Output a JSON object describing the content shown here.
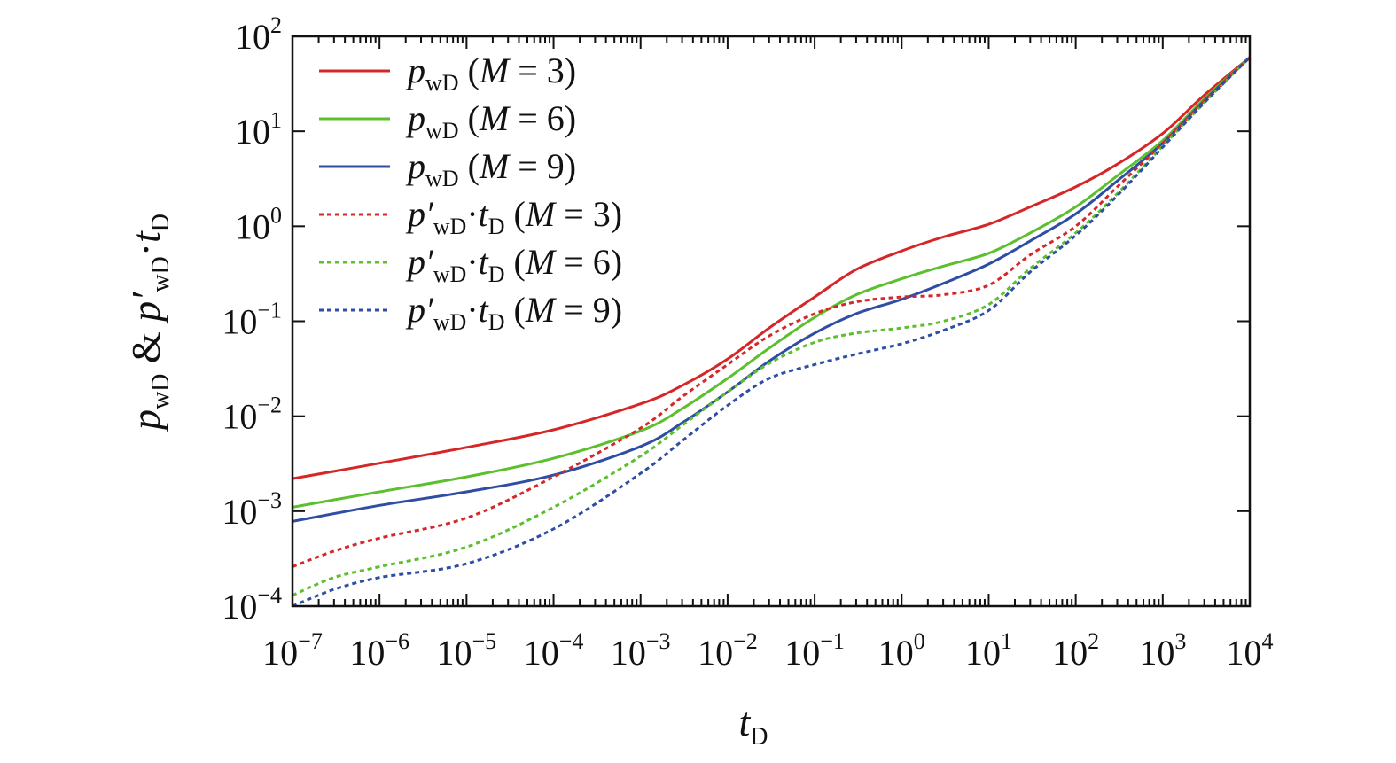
{
  "chart_data": {
    "type": "line",
    "xscale": "log",
    "yscale": "log",
    "xlim": [
      1e-07,
      10000.0
    ],
    "ylim": [
      0.0001,
      100.0
    ],
    "grid": false,
    "legend_position": "top-left",
    "xlabel": {
      "main": "t",
      "sub": "D"
    },
    "ylabel": {
      "p1": "p",
      "sub1": "wD",
      "amp": " & ",
      "p2": "p′",
      "sub2": "wD",
      "dot": "·",
      "t": "t",
      "sub3": "D"
    },
    "x_ticks": [
      {
        "base": "10",
        "exp": "−7",
        "value": 1e-07
      },
      {
        "base": "10",
        "exp": "−6",
        "value": 1e-06
      },
      {
        "base": "10",
        "exp": "−5",
        "value": 1e-05
      },
      {
        "base": "10",
        "exp": "−4",
        "value": 0.0001
      },
      {
        "base": "10",
        "exp": "−3",
        "value": 0.001
      },
      {
        "base": "10",
        "exp": "−2",
        "value": 0.01
      },
      {
        "base": "10",
        "exp": "−1",
        "value": 0.1
      },
      {
        "base": "10",
        "exp": "0",
        "value": 1
      },
      {
        "base": "10",
        "exp": "1",
        "value": 10
      },
      {
        "base": "10",
        "exp": "2",
        "value": 100
      },
      {
        "base": "10",
        "exp": "3",
        "value": 1000
      },
      {
        "base": "10",
        "exp": "4",
        "value": 10000
      }
    ],
    "y_ticks": [
      {
        "base": "10",
        "exp": "−4",
        "value": 0.0001
      },
      {
        "base": "10",
        "exp": "−3",
        "value": 0.001
      },
      {
        "base": "10",
        "exp": "−2",
        "value": 0.01
      },
      {
        "base": "10",
        "exp": "−1",
        "value": 0.1
      },
      {
        "base": "10",
        "exp": "0",
        "value": 1
      },
      {
        "base": "10",
        "exp": "1",
        "value": 10
      },
      {
        "base": "10",
        "exp": "2",
        "value": 100
      }
    ],
    "series": [
      {
        "name": "pwD (M = 3)",
        "label": {
          "var": "p",
          "prime": "",
          "sub": "wD",
          "tpart": false,
          "param": "M",
          "eq": " = 3)"
        },
        "color": "#d62728",
        "dashed": false,
        "x": [
          1e-07,
          1e-06,
          1e-05,
          0.0001,
          0.001,
          0.003,
          0.01,
          0.03,
          0.1,
          0.3,
          1,
          3,
          10,
          30,
          100,
          300,
          1000,
          3000,
          10000.0
        ],
        "y": [
          0.0022,
          0.0032,
          0.0047,
          0.0072,
          0.0135,
          0.021,
          0.04,
          0.085,
          0.18,
          0.35,
          0.55,
          0.77,
          1.05,
          1.6,
          2.6,
          4.5,
          9.5,
          24,
          60
        ]
      },
      {
        "name": "pwD (M = 6)",
        "label": {
          "var": "p",
          "prime": "",
          "sub": "wD",
          "tpart": false,
          "param": "M",
          "eq": " = 6)"
        },
        "color": "#5cbf2e",
        "dashed": false,
        "x": [
          1e-07,
          1e-06,
          1e-05,
          0.0001,
          0.001,
          0.003,
          0.01,
          0.03,
          0.1,
          0.3,
          1,
          3,
          10,
          30,
          100,
          300,
          1000,
          3000,
          10000.0
        ],
        "y": [
          0.0011,
          0.0016,
          0.0023,
          0.0036,
          0.007,
          0.012,
          0.025,
          0.052,
          0.11,
          0.19,
          0.28,
          0.38,
          0.52,
          0.85,
          1.6,
          3.4,
          8.0,
          22,
          60
        ]
      },
      {
        "name": "pwD (M = 9)",
        "label": {
          "var": "p",
          "prime": "",
          "sub": "wD",
          "tpart": false,
          "param": "M",
          "eq": " = 9)"
        },
        "color": "#2e4da3",
        "dashed": false,
        "x": [
          1e-07,
          1e-06,
          1e-05,
          0.0001,
          0.001,
          0.003,
          0.01,
          0.03,
          0.1,
          0.3,
          1,
          3,
          10,
          30,
          100,
          300,
          1000,
          3000,
          10000.0
        ],
        "y": [
          0.00078,
          0.00115,
          0.0016,
          0.0024,
          0.0048,
          0.0085,
          0.018,
          0.038,
          0.075,
          0.12,
          0.17,
          0.25,
          0.4,
          0.7,
          1.35,
          3.0,
          7.5,
          21,
          60
        ]
      },
      {
        "name": "p′wD·tD (M = 3)",
        "label": {
          "var": "p",
          "prime": "′",
          "sub": "wD",
          "tpart": true,
          "param": "M",
          "eq": " = 3)"
        },
        "color": "#d62728",
        "dashed": true,
        "x": [
          1e-07,
          3e-07,
          1e-06,
          1e-05,
          0.0001,
          0.001,
          0.003,
          0.01,
          0.03,
          0.1,
          0.3,
          1,
          3,
          10,
          30,
          100,
          300,
          1000,
          3000,
          10000.0
        ],
        "y": [
          0.00026,
          0.00038,
          0.00052,
          0.00085,
          0.0023,
          0.0075,
          0.016,
          0.035,
          0.07,
          0.12,
          0.16,
          0.18,
          0.19,
          0.24,
          0.5,
          1.0,
          2.6,
          7.5,
          21,
          60
        ]
      },
      {
        "name": "p′wD·tD (M = 6)",
        "label": {
          "var": "p",
          "prime": "′",
          "sub": "wD",
          "tpart": true,
          "param": "M",
          "eq": " = 6)"
        },
        "color": "#5cbf2e",
        "dashed": true,
        "x": [
          1e-07,
          3e-07,
          1e-06,
          1e-05,
          0.0001,
          0.001,
          0.003,
          0.01,
          0.03,
          0.1,
          0.3,
          1,
          3,
          10,
          30,
          100,
          300,
          1000,
          3000,
          10000.0
        ],
        "y": [
          0.00013,
          0.0002,
          0.00026,
          0.00042,
          0.0011,
          0.0038,
          0.008,
          0.018,
          0.036,
          0.06,
          0.075,
          0.085,
          0.1,
          0.15,
          0.36,
          0.85,
          2.2,
          7.0,
          20,
          60
        ]
      },
      {
        "name": "p′wD·tD (M = 9)",
        "label": {
          "var": "p",
          "prime": "′",
          "sub": "wD",
          "tpart": true,
          "param": "M",
          "eq": " = 9)"
        },
        "color": "#2e4da3",
        "dashed": true,
        "x": [
          1e-07,
          3e-07,
          1e-06,
          1e-05,
          0.0001,
          0.001,
          0.003,
          0.01,
          0.03,
          0.1,
          0.3,
          1,
          3,
          10,
          30,
          100,
          300,
          1000,
          3000,
          10000.0
        ],
        "y": [
          0.0001,
          0.00015,
          0.0002,
          0.00028,
          0.00065,
          0.0025,
          0.0055,
          0.013,
          0.025,
          0.035,
          0.045,
          0.058,
          0.08,
          0.13,
          0.33,
          0.8,
          2.1,
          6.8,
          20,
          60
        ]
      }
    ]
  }
}
